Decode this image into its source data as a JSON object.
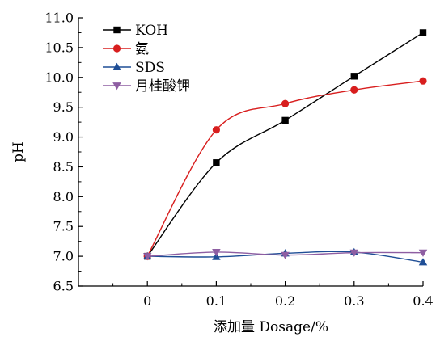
{
  "chart_data": {
    "type": "line",
    "title": "",
    "xlabel": "添加量 Dosage/%",
    "ylabel": "pH",
    "x": [
      0,
      0.1,
      0.2,
      0.3,
      0.4
    ],
    "x_tick_labels": [
      "0",
      "0.1",
      "0.2",
      "0.3",
      "0.4"
    ],
    "y_tick_labels": [
      "6.5",
      "7.0",
      "7.5",
      "8.0",
      "8.5",
      "9.0",
      "9.5",
      "10.0",
      "10.5",
      "11.0"
    ],
    "xlim": [
      -0.1,
      0.4
    ],
    "ylim": [
      6.5,
      11.0
    ],
    "y_ticks": [
      6.5,
      7.0,
      7.5,
      8.0,
      8.5,
      9.0,
      9.5,
      10.0,
      10.5,
      11.0
    ],
    "x_ticks": [
      0,
      0.1,
      0.2,
      0.3,
      0.4
    ],
    "grid": false,
    "legend_position": "top-left",
    "series": [
      {
        "name": "KOH",
        "values": [
          7.0,
          8.57,
          9.28,
          10.02,
          10.75
        ],
        "color": "#000000",
        "marker": "square",
        "curve": "smooth"
      },
      {
        "name": "氨",
        "values": [
          7.0,
          9.12,
          9.56,
          9.79,
          9.94
        ],
        "color": "#d81e1e",
        "marker": "circle",
        "curve": "smooth"
      },
      {
        "name": "SDS",
        "values": [
          7.0,
          6.99,
          7.05,
          7.07,
          6.9
        ],
        "color": "#1f4e96",
        "marker": "triangle-up",
        "curve": "smooth"
      },
      {
        "name": "月桂酸钾",
        "values": [
          7.0,
          7.07,
          7.02,
          7.06,
          7.06
        ],
        "color": "#8e5ea2",
        "marker": "triangle-down",
        "curve": "smooth"
      }
    ]
  }
}
